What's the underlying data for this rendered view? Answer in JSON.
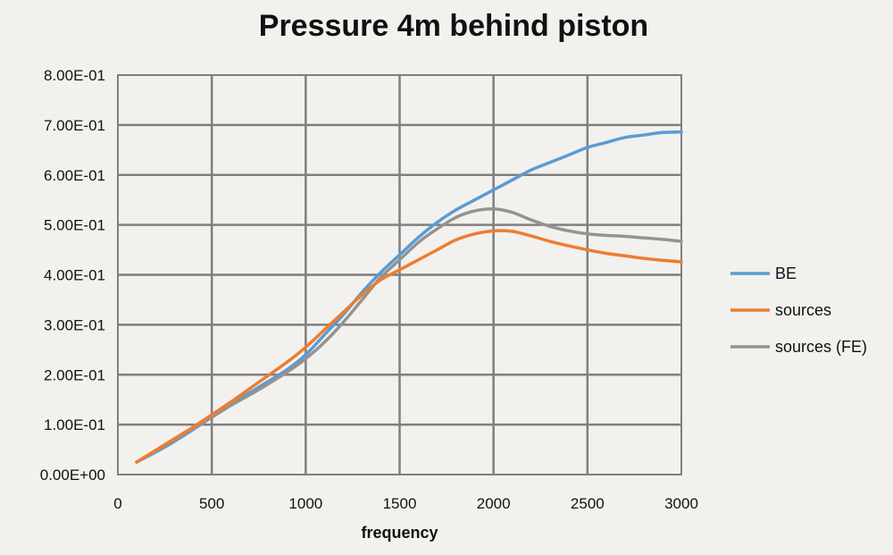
{
  "chart_data": {
    "type": "line",
    "title": "Pressure 4m behind piston",
    "xlabel": "frequency",
    "ylabel": "",
    "xlim": [
      0,
      3000
    ],
    "ylim": [
      0,
      0.8
    ],
    "x_ticks": [
      0,
      500,
      1000,
      1500,
      2000,
      2500,
      3000
    ],
    "x_tick_labels": [
      "0",
      "500",
      "1000",
      "1500",
      "2000",
      "2500",
      "3000"
    ],
    "y_ticks": [
      0,
      0.1,
      0.2,
      0.3,
      0.4,
      0.5,
      0.6,
      0.7,
      0.8
    ],
    "y_tick_labels": [
      "0.00E+00",
      "1.00E-01",
      "2.00E-01",
      "3.00E-01",
      "4.00E-01",
      "5.00E-01",
      "6.00E-01",
      "7.00E-01",
      "8.00E-01"
    ],
    "grid": true,
    "legend_position": "right",
    "series": [
      {
        "name": "BE",
        "color": "#5b9bd5",
        "x": [
          100,
          250,
          400,
          500,
          600,
          750,
          900,
          1000,
          1100,
          1200,
          1300,
          1400,
          1500,
          1600,
          1700,
          1800,
          1900,
          2000,
          2100,
          2200,
          2300,
          2400,
          2500,
          2600,
          2700,
          2800,
          2900,
          3000
        ],
        "y": [
          0.025,
          0.055,
          0.09,
          0.115,
          0.14,
          0.175,
          0.21,
          0.24,
          0.28,
          0.32,
          0.365,
          0.405,
          0.44,
          0.475,
          0.505,
          0.53,
          0.55,
          0.57,
          0.59,
          0.61,
          0.625,
          0.64,
          0.655,
          0.665,
          0.675,
          0.68,
          0.685,
          0.686
        ]
      },
      {
        "name": "sources",
        "color": "#ed7d31",
        "x": [
          100,
          250,
          400,
          500,
          600,
          750,
          900,
          1000,
          1100,
          1200,
          1300,
          1400,
          1500,
          1600,
          1700,
          1800,
          1900,
          2000,
          2100,
          2200,
          2300,
          2400,
          2500,
          2600,
          2700,
          2800,
          2900,
          3000
        ],
        "y": [
          0.025,
          0.06,
          0.095,
          0.12,
          0.145,
          0.185,
          0.225,
          0.255,
          0.29,
          0.325,
          0.36,
          0.39,
          0.41,
          0.43,
          0.45,
          0.47,
          0.482,
          0.488,
          0.487,
          0.478,
          0.467,
          0.458,
          0.45,
          0.443,
          0.438,
          0.433,
          0.429,
          0.426
        ]
      },
      {
        "name": "sources (FE)",
        "color": "#939393",
        "x": [
          100,
          250,
          400,
          500,
          600,
          750,
          900,
          1000,
          1100,
          1200,
          1300,
          1400,
          1500,
          1600,
          1700,
          1800,
          1900,
          2000,
          2100,
          2200,
          2300,
          2400,
          2500,
          2600,
          2700,
          2800,
          2900,
          3000
        ],
        "y": [
          0.025,
          0.058,
          0.092,
          0.115,
          0.138,
          0.17,
          0.205,
          0.232,
          0.265,
          0.305,
          0.35,
          0.395,
          0.43,
          0.465,
          0.492,
          0.515,
          0.528,
          0.532,
          0.525,
          0.51,
          0.497,
          0.488,
          0.482,
          0.479,
          0.477,
          0.474,
          0.471,
          0.467
        ]
      }
    ]
  }
}
